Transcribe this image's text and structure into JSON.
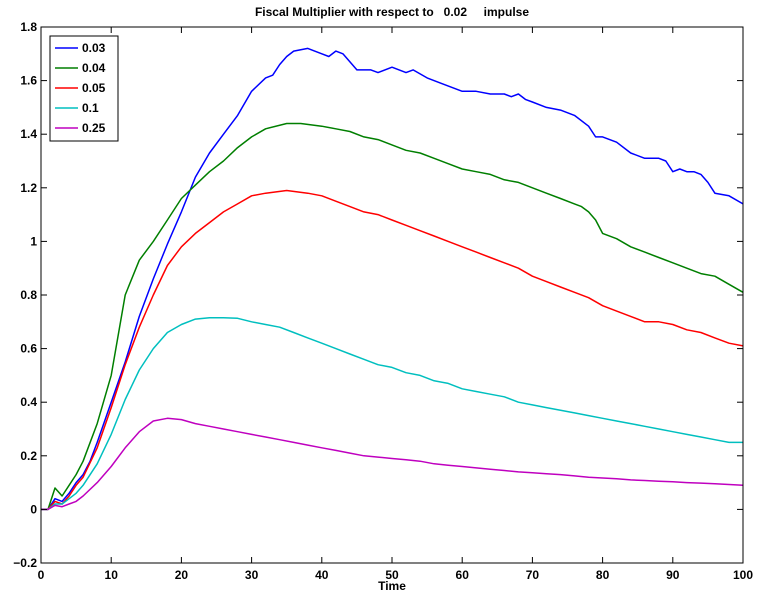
{
  "chart_data": {
    "type": "line",
    "title": "Fiscal Multiplier with respect to   0.02     impulse",
    "xlabel": "Time",
    "ylabel": "",
    "xlim": [
      0,
      100
    ],
    "ylim": [
      -0.2,
      1.8
    ],
    "xticks": [
      0,
      10,
      20,
      30,
      40,
      50,
      60,
      70,
      80,
      90,
      100
    ],
    "xtick_labels": [
      "0",
      "10",
      "20",
      "30",
      "40",
      "50",
      "60",
      "70",
      "80",
      "90",
      "100"
    ],
    "yticks": [
      -0.2,
      0,
      0.2,
      0.4,
      0.6,
      0.8,
      1,
      1.2,
      1.4,
      1.6,
      1.8
    ],
    "ytick_labels": [
      "−0.2",
      "0",
      "0.2",
      "0.4",
      "0.6",
      "0.8",
      "1",
      "1.2",
      "1.4",
      "1.6",
      "1.8"
    ],
    "grid": false,
    "legend_position": "top-left",
    "series": [
      {
        "name": "0.03",
        "color": "#0000ff",
        "points": [
          [
            0,
            0
          ],
          [
            1,
            0
          ],
          [
            2,
            0.04
          ],
          [
            3,
            0.03
          ],
          [
            4,
            0.06
          ],
          [
            5,
            0.1
          ],
          [
            6,
            0.13
          ],
          [
            7,
            0.18
          ],
          [
            8,
            0.25
          ],
          [
            10,
            0.4
          ],
          [
            12,
            0.55
          ],
          [
            14,
            0.72
          ],
          [
            16,
            0.86
          ],
          [
            18,
            0.99
          ],
          [
            20,
            1.11
          ],
          [
            22,
            1.24
          ],
          [
            24,
            1.33
          ],
          [
            26,
            1.4
          ],
          [
            28,
            1.47
          ],
          [
            30,
            1.56
          ],
          [
            32,
            1.61
          ],
          [
            33,
            1.62
          ],
          [
            34,
            1.66
          ],
          [
            35,
            1.69
          ],
          [
            36,
            1.71
          ],
          [
            38,
            1.72
          ],
          [
            40,
            1.7
          ],
          [
            41,
            1.69
          ],
          [
            42,
            1.71
          ],
          [
            43,
            1.7
          ],
          [
            45,
            1.64
          ],
          [
            47,
            1.64
          ],
          [
            48,
            1.63
          ],
          [
            50,
            1.65
          ],
          [
            52,
            1.63
          ],
          [
            53,
            1.64
          ],
          [
            55,
            1.61
          ],
          [
            57,
            1.59
          ],
          [
            60,
            1.56
          ],
          [
            62,
            1.56
          ],
          [
            64,
            1.55
          ],
          [
            66,
            1.55
          ],
          [
            67,
            1.54
          ],
          [
            68,
            1.55
          ],
          [
            69,
            1.53
          ],
          [
            70,
            1.52
          ],
          [
            72,
            1.5
          ],
          [
            74,
            1.49
          ],
          [
            76,
            1.47
          ],
          [
            78,
            1.43
          ],
          [
            79,
            1.39
          ],
          [
            80,
            1.39
          ],
          [
            82,
            1.37
          ],
          [
            84,
            1.33
          ],
          [
            86,
            1.31
          ],
          [
            88,
            1.31
          ],
          [
            89,
            1.3
          ],
          [
            90,
            1.26
          ],
          [
            91,
            1.27
          ],
          [
            92,
            1.26
          ],
          [
            93,
            1.26
          ],
          [
            94,
            1.25
          ],
          [
            95,
            1.22
          ],
          [
            96,
            1.18
          ],
          [
            98,
            1.17
          ],
          [
            100,
            1.14
          ]
        ]
      },
      {
        "name": "0.04",
        "color": "#007f00",
        "points": [
          [
            0,
            0
          ],
          [
            1,
            0
          ],
          [
            2,
            0.08
          ],
          [
            3,
            0.05
          ],
          [
            4,
            0.09
          ],
          [
            5,
            0.13
          ],
          [
            6,
            0.18
          ],
          [
            8,
            0.32
          ],
          [
            10,
            0.5
          ],
          [
            12,
            0.8
          ],
          [
            14,
            0.93
          ],
          [
            16,
            1.0
          ],
          [
            18,
            1.08
          ],
          [
            20,
            1.16
          ],
          [
            22,
            1.21
          ],
          [
            24,
            1.26
          ],
          [
            26,
            1.3
          ],
          [
            28,
            1.35
          ],
          [
            30,
            1.39
          ],
          [
            32,
            1.42
          ],
          [
            35,
            1.44
          ],
          [
            37,
            1.44
          ],
          [
            40,
            1.43
          ],
          [
            42,
            1.42
          ],
          [
            44,
            1.41
          ],
          [
            46,
            1.39
          ],
          [
            48,
            1.38
          ],
          [
            50,
            1.36
          ],
          [
            52,
            1.34
          ],
          [
            54,
            1.33
          ],
          [
            56,
            1.31
          ],
          [
            58,
            1.29
          ],
          [
            60,
            1.27
          ],
          [
            62,
            1.26
          ],
          [
            64,
            1.25
          ],
          [
            66,
            1.23
          ],
          [
            68,
            1.22
          ],
          [
            70,
            1.2
          ],
          [
            72,
            1.18
          ],
          [
            74,
            1.16
          ],
          [
            76,
            1.14
          ],
          [
            77,
            1.13
          ],
          [
            78,
            1.11
          ],
          [
            79,
            1.08
          ],
          [
            80,
            1.03
          ],
          [
            82,
            1.01
          ],
          [
            84,
            0.98
          ],
          [
            86,
            0.96
          ],
          [
            88,
            0.94
          ],
          [
            90,
            0.92
          ],
          [
            92,
            0.9
          ],
          [
            94,
            0.88
          ],
          [
            96,
            0.87
          ],
          [
            98,
            0.84
          ],
          [
            100,
            0.81
          ]
        ]
      },
      {
        "name": "0.05",
        "color": "#ff0000",
        "points": [
          [
            0,
            0
          ],
          [
            1,
            0
          ],
          [
            2,
            0.03
          ],
          [
            3,
            0.02
          ],
          [
            4,
            0.05
          ],
          [
            5,
            0.09
          ],
          [
            6,
            0.12
          ],
          [
            8,
            0.23
          ],
          [
            10,
            0.38
          ],
          [
            12,
            0.54
          ],
          [
            14,
            0.68
          ],
          [
            16,
            0.8
          ],
          [
            18,
            0.91
          ],
          [
            20,
            0.98
          ],
          [
            22,
            1.03
          ],
          [
            24,
            1.07
          ],
          [
            26,
            1.11
          ],
          [
            28,
            1.14
          ],
          [
            30,
            1.17
          ],
          [
            32,
            1.18
          ],
          [
            35,
            1.19
          ],
          [
            38,
            1.18
          ],
          [
            40,
            1.17
          ],
          [
            42,
            1.15
          ],
          [
            44,
            1.13
          ],
          [
            46,
            1.11
          ],
          [
            48,
            1.1
          ],
          [
            50,
            1.08
          ],
          [
            52,
            1.06
          ],
          [
            54,
            1.04
          ],
          [
            56,
            1.02
          ],
          [
            58,
            1.0
          ],
          [
            60,
            0.98
          ],
          [
            62,
            0.96
          ],
          [
            64,
            0.94
          ],
          [
            66,
            0.92
          ],
          [
            68,
            0.9
          ],
          [
            70,
            0.87
          ],
          [
            72,
            0.85
          ],
          [
            74,
            0.83
          ],
          [
            76,
            0.81
          ],
          [
            78,
            0.79
          ],
          [
            80,
            0.76
          ],
          [
            82,
            0.74
          ],
          [
            84,
            0.72
          ],
          [
            86,
            0.7
          ],
          [
            88,
            0.7
          ],
          [
            90,
            0.69
          ],
          [
            92,
            0.67
          ],
          [
            94,
            0.66
          ],
          [
            96,
            0.64
          ],
          [
            98,
            0.62
          ],
          [
            100,
            0.61
          ]
        ]
      },
      {
        "name": "0.1",
        "color": "#00bfbf",
        "points": [
          [
            0,
            0
          ],
          [
            1,
            0
          ],
          [
            2,
            0.02
          ],
          [
            3,
            0.02
          ],
          [
            4,
            0.04
          ],
          [
            5,
            0.06
          ],
          [
            6,
            0.09
          ],
          [
            8,
            0.17
          ],
          [
            10,
            0.28
          ],
          [
            12,
            0.41
          ],
          [
            14,
            0.52
          ],
          [
            16,
            0.6
          ],
          [
            18,
            0.66
          ],
          [
            20,
            0.69
          ],
          [
            22,
            0.71
          ],
          [
            24,
            0.715
          ],
          [
            26,
            0.715
          ],
          [
            28,
            0.713
          ],
          [
            30,
            0.7
          ],
          [
            32,
            0.69
          ],
          [
            34,
            0.68
          ],
          [
            36,
            0.66
          ],
          [
            38,
            0.64
          ],
          [
            40,
            0.62
          ],
          [
            42,
            0.6
          ],
          [
            44,
            0.58
          ],
          [
            46,
            0.56
          ],
          [
            48,
            0.54
          ],
          [
            50,
            0.53
          ],
          [
            52,
            0.51
          ],
          [
            54,
            0.5
          ],
          [
            56,
            0.48
          ],
          [
            58,
            0.47
          ],
          [
            60,
            0.45
          ],
          [
            62,
            0.44
          ],
          [
            64,
            0.43
          ],
          [
            66,
            0.42
          ],
          [
            68,
            0.4
          ],
          [
            70,
            0.39
          ],
          [
            72,
            0.38
          ],
          [
            74,
            0.37
          ],
          [
            76,
            0.36
          ],
          [
            78,
            0.35
          ],
          [
            80,
            0.34
          ],
          [
            82,
            0.33
          ],
          [
            84,
            0.32
          ],
          [
            86,
            0.31
          ],
          [
            88,
            0.3
          ],
          [
            90,
            0.29
          ],
          [
            92,
            0.28
          ],
          [
            94,
            0.27
          ],
          [
            96,
            0.26
          ],
          [
            98,
            0.25
          ],
          [
            100,
            0.25
          ]
        ]
      },
      {
        "name": "0.25",
        "color": "#bf00bf",
        "points": [
          [
            0,
            0
          ],
          [
            1,
            0
          ],
          [
            2,
            0.015
          ],
          [
            3,
            0.01
          ],
          [
            4,
            0.02
          ],
          [
            5,
            0.03
          ],
          [
            6,
            0.05
          ],
          [
            8,
            0.1
          ],
          [
            10,
            0.16
          ],
          [
            12,
            0.23
          ],
          [
            14,
            0.29
          ],
          [
            16,
            0.33
          ],
          [
            18,
            0.34
          ],
          [
            20,
            0.335
          ],
          [
            22,
            0.32
          ],
          [
            24,
            0.31
          ],
          [
            26,
            0.3
          ],
          [
            28,
            0.29
          ],
          [
            30,
            0.28
          ],
          [
            32,
            0.27
          ],
          [
            34,
            0.26
          ],
          [
            36,
            0.25
          ],
          [
            38,
            0.24
          ],
          [
            40,
            0.23
          ],
          [
            42,
            0.22
          ],
          [
            44,
            0.21
          ],
          [
            46,
            0.2
          ],
          [
            48,
            0.195
          ],
          [
            50,
            0.19
          ],
          [
            52,
            0.185
          ],
          [
            54,
            0.18
          ],
          [
            56,
            0.17
          ],
          [
            58,
            0.165
          ],
          [
            60,
            0.16
          ],
          [
            62,
            0.155
          ],
          [
            64,
            0.15
          ],
          [
            66,
            0.145
          ],
          [
            68,
            0.14
          ],
          [
            70,
            0.137
          ],
          [
            72,
            0.133
          ],
          [
            74,
            0.13
          ],
          [
            76,
            0.125
          ],
          [
            78,
            0.12
          ],
          [
            80,
            0.117
          ],
          [
            82,
            0.114
          ],
          [
            84,
            0.11
          ],
          [
            86,
            0.108
          ],
          [
            88,
            0.105
          ],
          [
            90,
            0.103
          ],
          [
            92,
            0.1
          ],
          [
            94,
            0.098
          ],
          [
            96,
            0.096
          ],
          [
            98,
            0.093
          ],
          [
            100,
            0.09
          ]
        ]
      }
    ]
  }
}
